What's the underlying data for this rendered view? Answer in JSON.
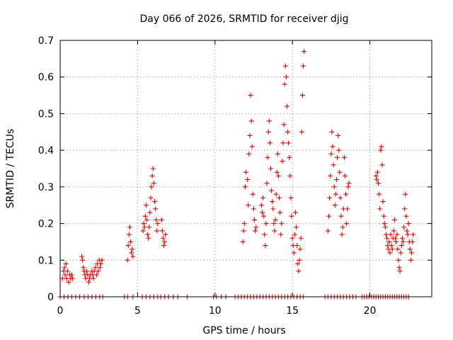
{
  "chart_data": {
    "type": "scatter",
    "title": "Day 066 of 2026, SRMTID for receiver djig",
    "xlabel": "GPS time / hours",
    "ylabel": "SRMTID / TECUs",
    "xlim": [
      0,
      24
    ],
    "ylim": [
      0,
      0.7
    ],
    "xticks": [
      0,
      5,
      10,
      15,
      20
    ],
    "xtick_labels": [
      "0",
      "5",
      "10",
      "15",
      "20"
    ],
    "yticks": [
      0,
      0.1,
      0.2,
      0.3,
      0.4,
      0.5,
      0.6,
      0.7
    ],
    "ytick_labels": [
      "0",
      "0.1",
      "0.2",
      "0.3",
      "0.4",
      "0.5",
      "0.6",
      "0.7"
    ],
    "grid": true,
    "marker": "+",
    "color": "#e00000",
    "series": [
      {
        "name": "SRMTID",
        "points": [
          [
            0.15,
            0.05
          ],
          [
            0.22,
            0.07
          ],
          [
            0.28,
            0.08
          ],
          [
            0.32,
            0.06
          ],
          [
            0.38,
            0.09
          ],
          [
            0.42,
            0.05
          ],
          [
            0.48,
            0.07
          ],
          [
            0.55,
            0.04
          ],
          [
            0.62,
            0.06
          ],
          [
            0.68,
            0.05
          ],
          [
            0.75,
            0.06
          ],
          [
            0.8,
            0.05
          ],
          [
            1.4,
            0.11
          ],
          [
            1.45,
            0.1
          ],
          [
            1.5,
            0.08
          ],
          [
            1.55,
            0.07
          ],
          [
            1.6,
            0.06
          ],
          [
            1.65,
            0.05
          ],
          [
            1.72,
            0.07
          ],
          [
            1.78,
            0.06
          ],
          [
            1.85,
            0.04
          ],
          [
            1.9,
            0.05
          ],
          [
            1.95,
            0.06
          ],
          [
            2.05,
            0.07
          ],
          [
            2.1,
            0.06
          ],
          [
            2.15,
            0.05
          ],
          [
            2.2,
            0.07
          ],
          [
            2.28,
            0.08
          ],
          [
            2.35,
            0.06
          ],
          [
            2.4,
            0.09
          ],
          [
            2.45,
            0.07
          ],
          [
            2.52,
            0.1
          ],
          [
            2.58,
            0.08
          ],
          [
            2.62,
            0.09
          ],
          [
            2.7,
            0.1
          ],
          [
            4.35,
            0.1
          ],
          [
            4.4,
            0.14
          ],
          [
            4.45,
            0.17
          ],
          [
            4.5,
            0.19
          ],
          [
            4.55,
            0.15
          ],
          [
            4.6,
            0.12
          ],
          [
            4.65,
            0.13
          ],
          [
            4.7,
            0.11
          ],
          [
            5.35,
            0.18
          ],
          [
            5.4,
            0.2
          ],
          [
            5.45,
            0.19
          ],
          [
            5.5,
            0.22
          ],
          [
            5.55,
            0.25
          ],
          [
            5.6,
            0.21
          ],
          [
            5.65,
            0.17
          ],
          [
            5.7,
            0.16
          ],
          [
            5.75,
            0.19
          ],
          [
            5.8,
            0.23
          ],
          [
            5.85,
            0.27
          ],
          [
            5.9,
            0.3
          ],
          [
            5.95,
            0.33
          ],
          [
            6.0,
            0.35
          ],
          [
            6.05,
            0.31
          ],
          [
            6.1,
            0.26
          ],
          [
            6.15,
            0.24
          ],
          [
            6.2,
            0.21
          ],
          [
            6.25,
            0.18
          ],
          [
            6.3,
            0.2
          ],
          [
            6.55,
            0.21
          ],
          [
            6.6,
            0.18
          ],
          [
            6.65,
            0.16
          ],
          [
            6.7,
            0.14
          ],
          [
            6.75,
            0.15
          ],
          [
            6.8,
            0.17
          ],
          [
            11.8,
            0.15
          ],
          [
            11.85,
            0.18
          ],
          [
            11.9,
            0.2
          ],
          [
            11.95,
            0.3
          ],
          [
            12.0,
            0.34
          ],
          [
            12.1,
            0.32
          ],
          [
            12.15,
            0.25
          ],
          [
            12.2,
            0.39
          ],
          [
            12.25,
            0.44
          ],
          [
            12.3,
            0.55
          ],
          [
            12.35,
            0.48
          ],
          [
            12.4,
            0.41
          ],
          [
            12.45,
            0.28
          ],
          [
            12.5,
            0.24
          ],
          [
            12.55,
            0.21
          ],
          [
            12.6,
            0.18
          ],
          [
            12.65,
            0.19
          ],
          [
            13.0,
            0.25
          ],
          [
            13.05,
            0.23
          ],
          [
            13.1,
            0.27
          ],
          [
            13.15,
            0.22
          ],
          [
            13.2,
            0.17
          ],
          [
            13.25,
            0.14
          ],
          [
            13.3,
            0.2
          ],
          [
            13.35,
            0.31
          ],
          [
            13.4,
            0.38
          ],
          [
            13.45,
            0.45
          ],
          [
            13.5,
            0.48
          ],
          [
            13.55,
            0.42
          ],
          [
            13.6,
            0.35
          ],
          [
            13.65,
            0.29
          ],
          [
            13.7,
            0.26
          ],
          [
            13.75,
            0.24
          ],
          [
            13.8,
            0.2
          ],
          [
            13.85,
            0.18
          ],
          [
            13.9,
            0.21
          ],
          [
            13.95,
            0.28
          ],
          [
            14.0,
            0.34
          ],
          [
            14.05,
            0.39
          ],
          [
            14.1,
            0.33
          ],
          [
            14.15,
            0.27
          ],
          [
            14.2,
            0.23
          ],
          [
            14.25,
            0.17
          ],
          [
            14.3,
            0.2
          ],
          [
            14.35,
            0.37
          ],
          [
            14.4,
            0.42
          ],
          [
            14.45,
            0.47
          ],
          [
            14.5,
            0.58
          ],
          [
            14.55,
            0.63
          ],
          [
            14.6,
            0.6
          ],
          [
            14.65,
            0.52
          ],
          [
            14.7,
            0.45
          ],
          [
            14.75,
            0.42
          ],
          [
            14.8,
            0.38
          ],
          [
            14.85,
            0.33
          ],
          [
            14.9,
            0.27
          ],
          [
            14.95,
            0.22
          ],
          [
            15.0,
            0.16
          ],
          [
            15.05,
            0.14
          ],
          [
            15.1,
            0.12
          ],
          [
            15.15,
            0.17
          ],
          [
            15.2,
            0.23
          ],
          [
            15.25,
            0.19
          ],
          [
            15.3,
            0.14
          ],
          [
            15.35,
            0.09
          ],
          [
            15.4,
            0.07
          ],
          [
            15.45,
            0.1
          ],
          [
            15.5,
            0.13
          ],
          [
            15.55,
            0.16
          ],
          [
            15.6,
            0.45
          ],
          [
            15.65,
            0.55
          ],
          [
            15.7,
            0.63
          ],
          [
            15.75,
            0.67
          ],
          [
            17.3,
            0.18
          ],
          [
            17.35,
            0.22
          ],
          [
            17.4,
            0.27
          ],
          [
            17.45,
            0.33
          ],
          [
            17.5,
            0.39
          ],
          [
            17.55,
            0.45
          ],
          [
            17.6,
            0.41
          ],
          [
            17.65,
            0.36
          ],
          [
            17.7,
            0.3
          ],
          [
            17.75,
            0.25
          ],
          [
            17.8,
            0.28
          ],
          [
            17.85,
            0.32
          ],
          [
            17.9,
            0.38
          ],
          [
            17.95,
            0.44
          ],
          [
            18.0,
            0.4
          ],
          [
            18.05,
            0.34
          ],
          [
            18.1,
            0.27
          ],
          [
            18.15,
            0.22
          ],
          [
            18.2,
            0.17
          ],
          [
            18.25,
            0.19
          ],
          [
            18.3,
            0.24
          ],
          [
            18.35,
            0.38
          ],
          [
            18.4,
            0.33
          ],
          [
            18.45,
            0.28
          ],
          [
            18.5,
            0.2
          ],
          [
            18.55,
            0.24
          ],
          [
            18.6,
            0.3
          ],
          [
            18.65,
            0.31
          ],
          [
            20.4,
            0.33
          ],
          [
            20.45,
            0.32
          ],
          [
            20.5,
            0.34
          ],
          [
            20.55,
            0.31
          ],
          [
            20.6,
            0.28
          ],
          [
            20.65,
            0.24
          ],
          [
            20.7,
            0.4
          ],
          [
            20.75,
            0.41
          ],
          [
            20.8,
            0.36
          ],
          [
            20.85,
            0.26
          ],
          [
            20.9,
            0.22
          ],
          [
            20.95,
            0.2
          ],
          [
            21.0,
            0.19
          ],
          [
            21.05,
            0.17
          ],
          [
            21.1,
            0.16
          ],
          [
            21.15,
            0.14
          ],
          [
            21.2,
            0.13
          ],
          [
            21.25,
            0.15
          ],
          [
            21.3,
            0.12
          ],
          [
            21.35,
            0.17
          ],
          [
            21.4,
            0.14
          ],
          [
            21.45,
            0.13
          ],
          [
            21.5,
            0.16
          ],
          [
            21.55,
            0.18
          ],
          [
            21.6,
            0.21
          ],
          [
            21.65,
            0.16
          ],
          [
            21.7,
            0.15
          ],
          [
            21.75,
            0.17
          ],
          [
            21.8,
            0.13
          ],
          [
            21.85,
            0.1
          ],
          [
            21.9,
            0.08
          ],
          [
            21.95,
            0.07
          ],
          [
            22.0,
            0.12
          ],
          [
            22.05,
            0.14
          ],
          [
            22.1,
            0.16
          ],
          [
            22.15,
            0.15
          ],
          [
            22.2,
            0.19
          ],
          [
            22.25,
            0.24
          ],
          [
            22.3,
            0.28
          ],
          [
            22.35,
            0.22
          ],
          [
            22.4,
            0.18
          ],
          [
            22.45,
            0.17
          ],
          [
            22.5,
            0.2
          ],
          [
            22.55,
            0.15
          ],
          [
            22.6,
            0.13
          ],
          [
            22.65,
            0.1
          ],
          [
            22.7,
            0.12
          ],
          [
            22.75,
            0.15
          ],
          [
            22.8,
            0.17
          ]
        ]
      },
      {
        "name": "zero values",
        "points": [
          [
            0.0,
            0
          ],
          [
            0.25,
            0
          ],
          [
            0.5,
            0
          ],
          [
            0.75,
            0
          ],
          [
            1.0,
            0
          ],
          [
            1.25,
            0
          ],
          [
            1.55,
            0
          ],
          [
            1.8,
            0
          ],
          [
            2.05,
            0
          ],
          [
            2.3,
            0
          ],
          [
            2.55,
            0
          ],
          [
            2.75,
            0
          ],
          [
            4.15,
            0
          ],
          [
            4.35,
            0
          ],
          [
            4.7,
            0
          ],
          [
            5.3,
            0
          ],
          [
            5.55,
            0
          ],
          [
            5.8,
            0
          ],
          [
            6.05,
            0
          ],
          [
            6.3,
            0
          ],
          [
            6.5,
            0
          ],
          [
            6.75,
            0
          ],
          [
            7.0,
            0
          ],
          [
            7.3,
            0
          ],
          [
            7.6,
            0
          ],
          [
            8.2,
            0
          ],
          [
            9.9,
            0
          ],
          [
            10.1,
            0
          ],
          [
            10.4,
            0
          ],
          [
            10.7,
            0
          ],
          [
            11.3,
            0
          ],
          [
            11.5,
            0
          ],
          [
            11.7,
            0
          ],
          [
            11.9,
            0
          ],
          [
            12.1,
            0
          ],
          [
            12.3,
            0
          ],
          [
            12.5,
            0
          ],
          [
            12.7,
            0
          ],
          [
            12.9,
            0
          ],
          [
            13.1,
            0
          ],
          [
            13.3,
            0
          ],
          [
            13.5,
            0
          ],
          [
            13.7,
            0
          ],
          [
            13.9,
            0
          ],
          [
            14.1,
            0
          ],
          [
            14.3,
            0
          ],
          [
            14.5,
            0
          ],
          [
            14.7,
            0
          ],
          [
            14.9,
            0
          ],
          [
            15.1,
            0
          ],
          [
            15.3,
            0
          ],
          [
            15.5,
            0
          ],
          [
            15.7,
            0
          ],
          [
            17.1,
            0
          ],
          [
            17.3,
            0
          ],
          [
            17.5,
            0
          ],
          [
            17.7,
            0
          ],
          [
            17.9,
            0
          ],
          [
            18.1,
            0
          ],
          [
            18.3,
            0
          ],
          [
            18.5,
            0
          ],
          [
            18.7,
            0
          ],
          [
            18.9,
            0
          ],
          [
            19.1,
            0
          ],
          [
            19.5,
            0
          ],
          [
            19.65,
            0
          ],
          [
            19.8,
            0
          ],
          [
            19.95,
            0
          ],
          [
            20.1,
            0
          ],
          [
            20.25,
            0
          ],
          [
            20.4,
            0
          ],
          [
            20.55,
            0
          ],
          [
            20.7,
            0
          ],
          [
            20.85,
            0
          ],
          [
            21.0,
            0
          ],
          [
            21.15,
            0
          ],
          [
            21.3,
            0
          ],
          [
            21.45,
            0
          ],
          [
            21.6,
            0
          ],
          [
            21.75,
            0
          ],
          [
            21.9,
            0
          ],
          [
            22.05,
            0
          ],
          [
            22.2,
            0
          ],
          [
            22.35,
            0
          ],
          [
            22.5,
            0
          ]
        ]
      }
    ]
  }
}
